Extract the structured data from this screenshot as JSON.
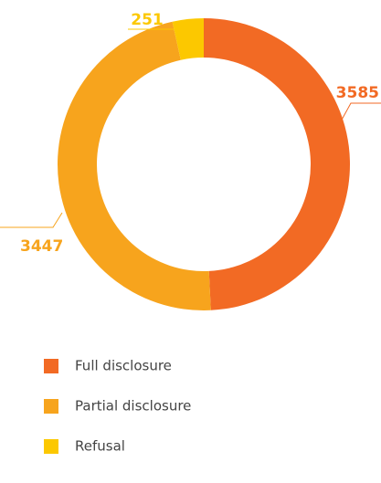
{
  "chart_data": {
    "type": "pie",
    "donut": true,
    "categories": [
      "Full disclosure",
      "Partial disclosure",
      "Refusal"
    ],
    "values": [
      3585,
      3447,
      251
    ],
    "colors": [
      "#f26a24",
      "#f7a41d",
      "#fcc800"
    ]
  }
}
